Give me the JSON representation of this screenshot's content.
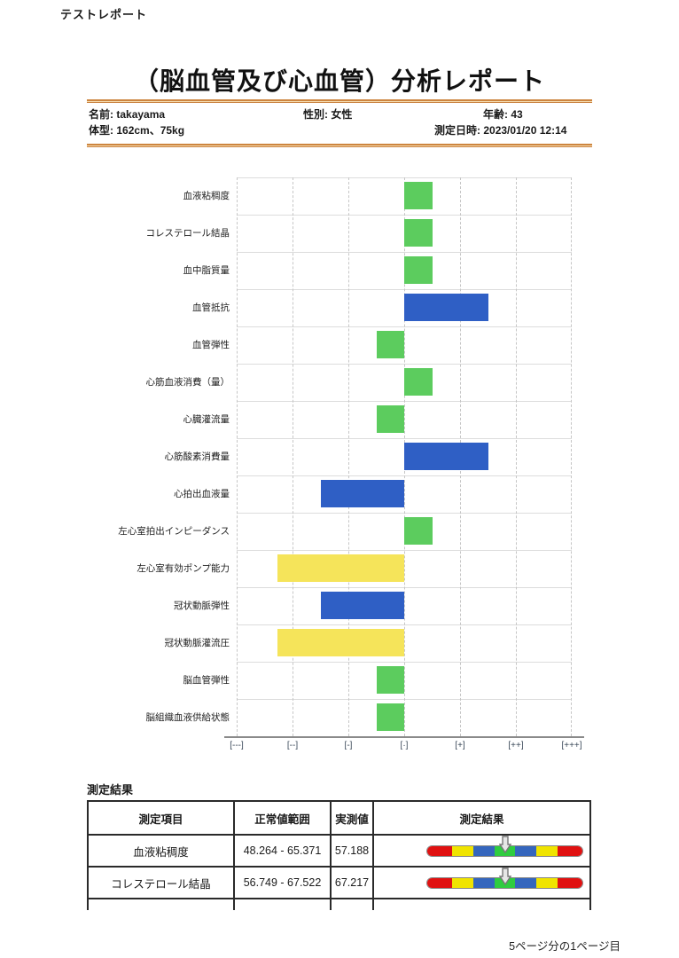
{
  "page": {
    "header_label": "テストレポート",
    "title": "（脳血管及び心血管）分析レポート",
    "footer": "5ページ分の1ページ目"
  },
  "patient": {
    "name_label": "名前:",
    "name": "takayama",
    "gender_label": "性別:",
    "gender": "女性",
    "age_label": "年齢:",
    "age": "43",
    "body_label": "体型:",
    "body": "162cm、75kg",
    "datetime_label": "測定日時:",
    "datetime": "2023/01/20 12:14"
  },
  "chart_data": {
    "type": "bar",
    "orientation": "horizontal",
    "title": "",
    "categories": [
      "血液粘稠度",
      "コレステロール結晶",
      "血中脂質量",
      "血管抵抗",
      "血管弾性",
      "心筋血液消費（量）",
      "心臓灌流量",
      "心筋酸素消費量",
      "心拍出血液量",
      "左心室拍出インピーダンス",
      "左心室有効ポンプ能力",
      "冠状動脈弾性",
      "冠状動脈灌流圧",
      "脳血管弾性",
      "脳組織血液供給状態"
    ],
    "values": [
      0.5,
      0.5,
      0.5,
      1.5,
      -0.5,
      0.5,
      -0.5,
      1.5,
      -1.5,
      0.5,
      -2.27,
      -1.5,
      -2.27,
      -0.5,
      -0.5
    ],
    "colors": [
      "green",
      "green",
      "green",
      "blue",
      "green",
      "green",
      "green",
      "blue",
      "blue",
      "green",
      "yellow",
      "blue",
      "yellow",
      "green",
      "green"
    ],
    "x_tick_labels": [
      "[---]",
      "[--]",
      "[-]",
      "[·]",
      "[+]",
      "[++]",
      "[+++]"
    ],
    "xlim": [
      -3,
      3
    ],
    "grid": true,
    "palette": {
      "green": "#5ccc5e",
      "blue": "#2f5fc5",
      "yellow": "#f5e45a"
    }
  },
  "results": {
    "section_title": "測定結果",
    "columns": [
      "測定項目",
      "正常値範囲",
      "実測値",
      "測定結果"
    ],
    "indicator_segment_colors": [
      "#e01111",
      "#f0e400",
      "#3566bd",
      "#2fcc3f",
      "#3566bd",
      "#f0e400",
      "#e01111"
    ],
    "rows": [
      {
        "item": "血液粘稠度",
        "range": "48.264 - 65.371",
        "value": "57.188",
        "indicator_pct": 50
      },
      {
        "item": "コレステロール結晶",
        "range": "56.749 - 67.522",
        "value": "67.217",
        "indicator_pct": 50
      }
    ]
  }
}
